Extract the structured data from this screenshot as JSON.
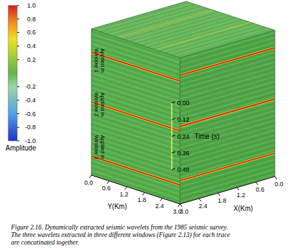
{
  "chart_data": {
    "type": "volume",
    "xlabel": "X(Km)",
    "ylabel": "Y(Km)",
    "zlabel": "Time (s)",
    "xlim": [
      0,
      3
    ],
    "xticks": [
      {
        "value": 0,
        "label": "0.0"
      },
      0.6,
      1.2,
      1.8,
      2.4,
      {
        "value": 3,
        "label": "3.0"
      }
    ],
    "ylim": [
      0,
      3
    ],
    "yticks": [
      {
        "value": 0,
        "label": "0.0"
      },
      0.6,
      1.2,
      1.8,
      2.4,
      {
        "value": 3,
        "label": "3.0"
      }
    ],
    "zlim": [
      0,
      0.48
    ],
    "zticks": [
      {
        "value": 0,
        "label": "0.00"
      },
      0.12,
      0.24,
      0.36,
      0.48
    ],
    "colorbar_label": "Amplitude",
    "colorbar_range": [
      -1,
      1
    ],
    "colorbar_ticks": [
      {
        "value": 1,
        "label": "1.0"
      },
      0.8,
      0.6,
      0.4,
      0.2,
      -0.2,
      -0.4,
      -0.6,
      -0.8,
      {
        "value": -1,
        "label": "-1.0"
      }
    ],
    "annotations": [
      [
        "Applied in",
        "Window 1"
      ],
      [
        "Applied in",
        "Window 2"
      ],
      [
        "Applied in",
        "Window 3"
      ]
    ],
    "caption": [
      "Figure 2.16. Dynamically extracted seismic wavelets from the 1985 seismic survey.",
      "The three wavelets extracted in three different windows (Figure 2.13) for each trace",
      "are concatinated together."
    ]
  }
}
